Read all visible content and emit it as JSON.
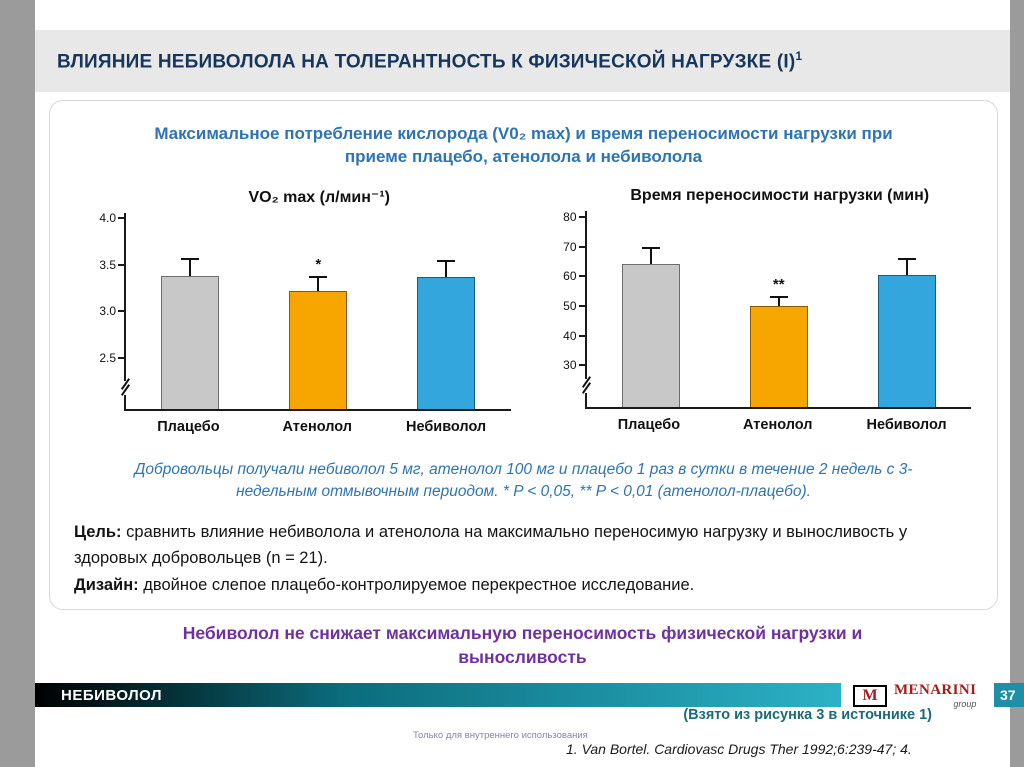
{
  "colors": {
    "title_navy": "#17365D",
    "accent_blue": "#2E74B5",
    "purple": "#7030A0",
    "teal": "#1E8FA6",
    "menarini_red": "#A61C1C"
  },
  "page": {
    "title": "ВЛИЯНИЕ НЕБИВОЛОЛА НА ТОЛЕРАНТНОСТЬ К ФИЗИЧЕСКОЙ НАГРУЗКЕ (I)",
    "title_superscript": "1"
  },
  "content": {
    "heading": "Максимальное потребление кислорода (V0₂ max) и время переносимости нагрузки при приеме плацебо, атенолола и небиволола",
    "note_italic": "Добровольцы получали небиволол 5 мг, атенолол 100 мг и плацебо 1 раз в сутки в течение 2 недель с 3-недельным отмывочным периодом. * P < 0,05, ** P < 0,01 (атенолол-плацебо).",
    "goal_label": "Цель:",
    "goal_text": " сравнить влияние небиволола и атенолола на максимально переносимую нагрузку и выносливость у здоровых добровольцев (n = 21).",
    "design_label": "Дизайн:",
    "design_text": " двойное слепое плацебо-контролируемое перекрестное исследование.",
    "conclusion": "Небиволол не снижает максимальную переносимость физической нагрузки и выносливость"
  },
  "chart_data": [
    {
      "type": "bar",
      "title": "VO₂ max (л/мин⁻¹)",
      "categories": [
        "Плацебо",
        "Атенолол",
        "Небиволол"
      ],
      "values": [
        3.38,
        3.22,
        3.37
      ],
      "error_caps": [
        3.57,
        3.38,
        3.55
      ],
      "annotations": [
        "",
        "*",
        ""
      ],
      "bar_colors": [
        "#C8C8C8",
        "#F7A600",
        "#33A7DD"
      ],
      "ylim": [
        1.95,
        4.06
      ],
      "yticks": [
        2.5,
        3.0,
        3.5,
        4.0
      ],
      "ytick_labels": [
        "2.5",
        "3.0",
        "3.5",
        "4.0"
      ],
      "axis_break": true,
      "grid": false,
      "legend": "none"
    },
    {
      "type": "bar",
      "title": "Время переносимости нагрузки (мин)",
      "categories": [
        "Плацебо",
        "Атенолол",
        "Небиволол"
      ],
      "values": [
        64,
        50,
        60.5
      ],
      "error_caps": [
        70,
        53.5,
        66
      ],
      "annotations": [
        "",
        "**",
        ""
      ],
      "bar_colors": [
        "#C8C8C8",
        "#F7A600",
        "#33A7DD"
      ],
      "ylim": [
        16,
        82
      ],
      "yticks": [
        30,
        40,
        50,
        60,
        70,
        80
      ],
      "ytick_labels": [
        "30",
        "40",
        "50",
        "60",
        "70",
        "80"
      ],
      "axis_break": true,
      "grid": false,
      "legend": "none"
    }
  ],
  "footer": {
    "drug_name": "НЕБИВОЛОЛ",
    "page_number": "37",
    "source_note": "(Взято из рисунка 3 в источнике 1)",
    "internal_use": "Только для внутреннего использования",
    "reference": "1. Van Bortel.  Cardiovasc Drugs Ther 1992;6:239-47; 4.",
    "logo_letter": "M",
    "logo_text": "MENARINI",
    "logo_sub": "group"
  }
}
